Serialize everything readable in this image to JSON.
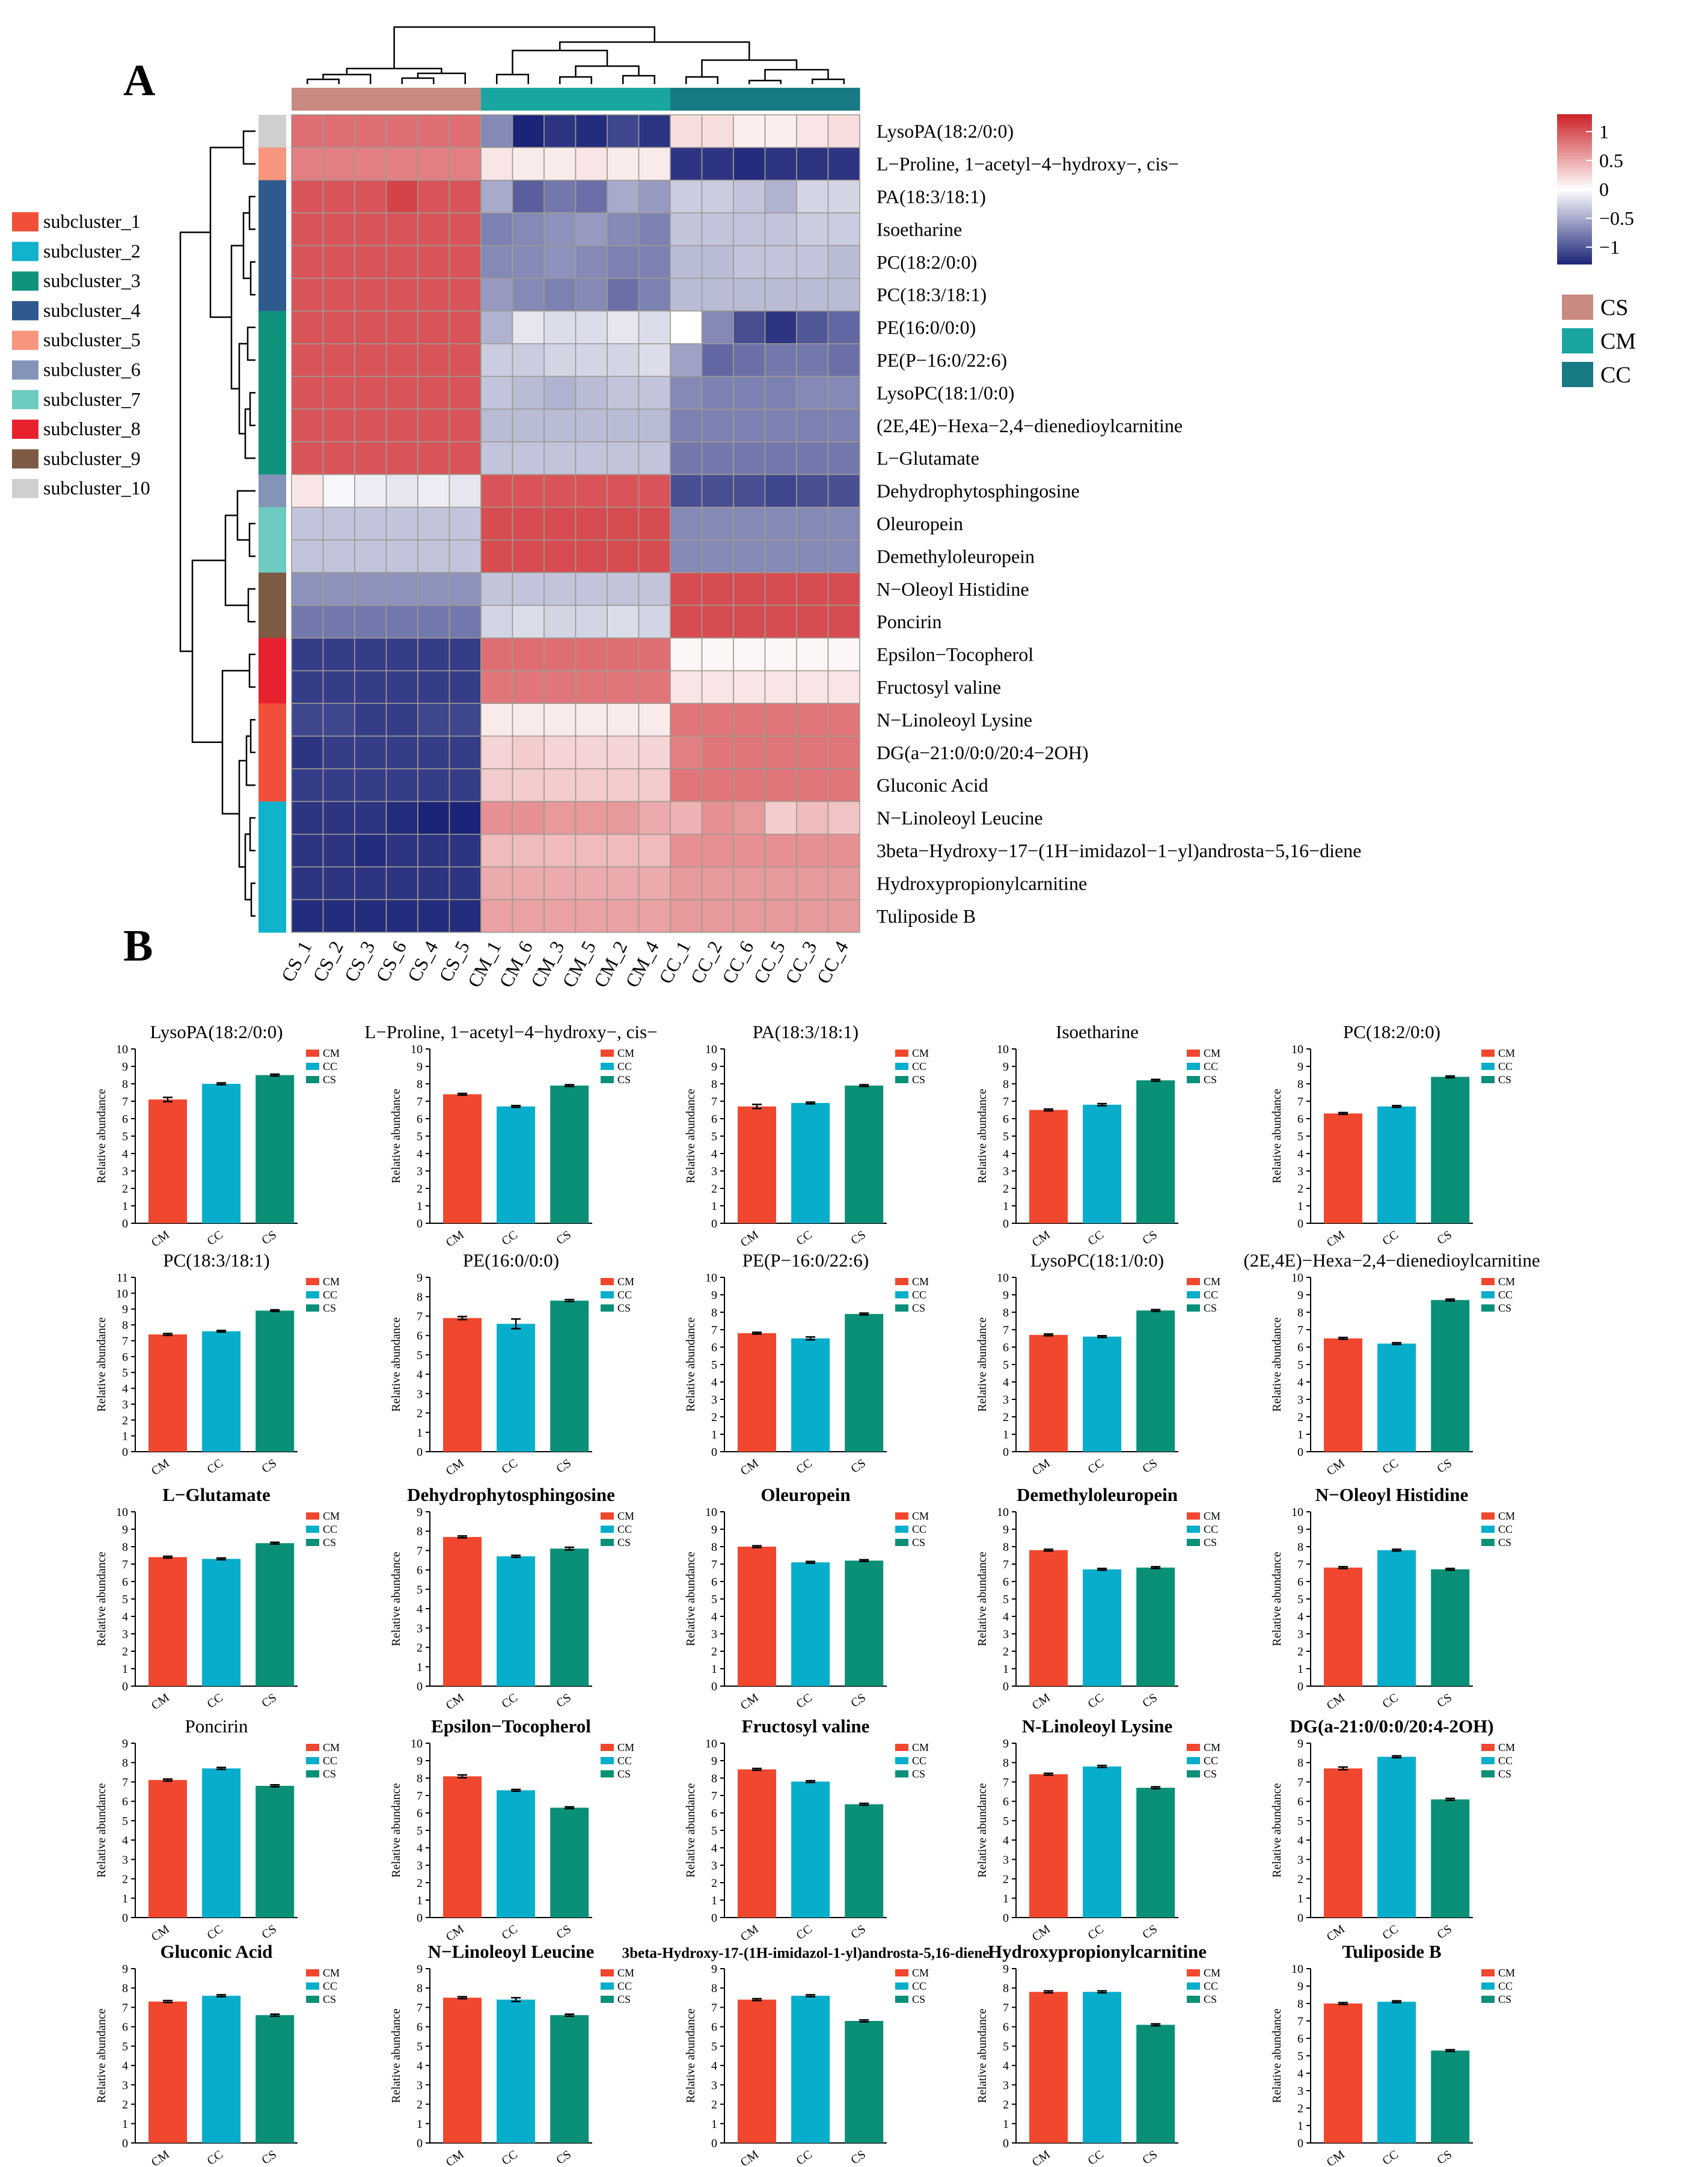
{
  "panel_labels": {
    "a": "A",
    "b": "B"
  },
  "colors": {
    "heat_low": "#1b2478",
    "heat_mid": "#ffffff",
    "heat_high": "#cc2127",
    "group": {
      "CS": "#c98a82",
      "CM": "#1aa6a0",
      "CC": "#187a84"
    },
    "bar": {
      "CM": "#f1472f",
      "CC": "#07aecb",
      "CS": "#0b9078"
    },
    "subcluster": [
      "#f05039",
      "#10b2cc",
      "#0f947b",
      "#2f5a8e",
      "#f7957f",
      "#8493b8",
      "#6dcbbf",
      "#e8212e",
      "#7d5a43",
      "#cfcfcf"
    ]
  },
  "chart_data": [
    {
      "type": "heatmap",
      "title": "",
      "columns": [
        "CS_1",
        "CS_2",
        "CS_3",
        "CS_6",
        "CS_4",
        "CS_5",
        "CM_1",
        "CM_6",
        "CM_3",
        "CM_5",
        "CM_2",
        "CM_4",
        "CC_1",
        "CC_2",
        "CC_6",
        "CC_5",
        "CC_3",
        "CC_4"
      ],
      "column_groups": [
        "CS",
        "CS",
        "CS",
        "CS",
        "CS",
        "CS",
        "CM",
        "CM",
        "CM",
        "CM",
        "CM",
        "CM",
        "CC",
        "CC",
        "CC",
        "CC",
        "CC",
        "CC"
      ],
      "rows": [
        "LysoPA(18:2/0:0)",
        "L−Proline, 1−acetyl−4−hydroxy−, cis−",
        "PA(18:3/18:1)",
        "Isoetharine",
        "PC(18:2/0:0)",
        "PC(18:3/18:1)",
        "PE(16:0/0:0)",
        "PE(P−16:0/22:6)",
        "LysoPC(18:1/0:0)",
        "(2E,4E)−Hexa−2,4−dienedioylcarnitine",
        "L−Glutamate",
        "Dehydrophytosphingosine",
        "Oleuropein",
        "Demethyloleuropein",
        "N−Oleoyl Histidine",
        "Poncirin",
        "Epsilon−Tocopherol",
        "Fructosyl valine",
        "N−Linoleoyl Lysine",
        "DG(a−21:0/0:0/20:4−2OH)",
        "Gluconic Acid",
        "N−Linoleoyl Leucine",
        "3beta−Hydroxy−17−(1H−imidazol−1−yl)androsta−5,16−diene",
        "Hydroxypropionylcarnitine",
        "Tuliposide B"
      ],
      "row_subclusters": [
        10,
        5,
        4,
        4,
        4,
        4,
        3,
        3,
        3,
        3,
        3,
        6,
        7,
        7,
        9,
        9,
        8,
        8,
        1,
        1,
        1,
        2,
        2,
        2,
        2
      ],
      "values": [
        [
          0.85,
          0.85,
          0.85,
          0.85,
          0.85,
          0.85,
          -0.7,
          -1.3,
          -1.2,
          -1.25,
          -1.1,
          -1.2,
          0.2,
          0.2,
          0.1,
          0.1,
          0.15,
          0.2
        ],
        [
          0.75,
          0.75,
          0.75,
          0.75,
          0.75,
          0.75,
          0.15,
          0.12,
          0.12,
          0.15,
          0.12,
          0.12,
          -1.2,
          -1.2,
          -1.25,
          -1.2,
          -1.2,
          -1.2
        ],
        [
          1.0,
          1.0,
          1.0,
          1.1,
          1.0,
          1.0,
          -0.5,
          -0.95,
          -0.8,
          -0.85,
          -0.5,
          -0.6,
          -0.3,
          -0.3,
          -0.35,
          -0.45,
          -0.25,
          -0.25
        ],
        [
          1.0,
          1.0,
          1.0,
          1.0,
          1.0,
          1.0,
          -0.75,
          -0.7,
          -0.65,
          -0.6,
          -0.7,
          -0.75,
          -0.35,
          -0.35,
          -0.35,
          -0.35,
          -0.3,
          -0.3
        ],
        [
          1.0,
          1.0,
          1.0,
          1.0,
          1.0,
          1.0,
          -0.7,
          -0.7,
          -0.65,
          -0.7,
          -0.75,
          -0.75,
          -0.4,
          -0.4,
          -0.35,
          -0.35,
          -0.35,
          -0.4
        ],
        [
          1.0,
          1.0,
          1.0,
          1.0,
          1.0,
          1.0,
          -0.6,
          -0.7,
          -0.75,
          -0.7,
          -0.85,
          -0.75,
          -0.4,
          -0.4,
          -0.4,
          -0.4,
          -0.4,
          -0.4
        ],
        [
          1.0,
          1.0,
          1.0,
          1.0,
          1.0,
          1.0,
          -0.45,
          -0.15,
          -0.2,
          -0.2,
          -0.15,
          -0.2,
          0.0,
          -0.7,
          -1.05,
          -1.2,
          -1.0,
          -0.9
        ],
        [
          1.0,
          1.0,
          1.0,
          1.0,
          1.0,
          1.0,
          -0.3,
          -0.3,
          -0.25,
          -0.25,
          -0.25,
          -0.2,
          -0.55,
          -0.9,
          -0.85,
          -0.8,
          -0.8,
          -0.85
        ],
        [
          1.0,
          1.0,
          1.0,
          1.0,
          1.0,
          1.0,
          -0.35,
          -0.4,
          -0.45,
          -0.4,
          -0.35,
          -0.35,
          -0.7,
          -0.75,
          -0.75,
          -0.75,
          -0.7,
          -0.7
        ],
        [
          1.0,
          1.0,
          1.0,
          1.0,
          1.0,
          1.0,
          -0.4,
          -0.4,
          -0.4,
          -0.4,
          -0.4,
          -0.4,
          -0.75,
          -0.75,
          -0.75,
          -0.75,
          -0.75,
          -0.75
        ],
        [
          1.0,
          1.0,
          1.0,
          1.0,
          1.0,
          1.0,
          -0.35,
          -0.35,
          -0.35,
          -0.35,
          -0.35,
          -0.35,
          -0.8,
          -0.8,
          -0.8,
          -0.8,
          -0.8,
          -0.8
        ],
        [
          0.15,
          -0.05,
          -0.1,
          -0.15,
          -0.1,
          -0.15,
          1.0,
          1.0,
          1.0,
          1.0,
          1.0,
          1.0,
          -1.05,
          -1.05,
          -1.05,
          -1.1,
          -1.05,
          -1.05
        ],
        [
          -0.35,
          -0.35,
          -0.35,
          -0.35,
          -0.35,
          -0.35,
          1.05,
          1.05,
          1.05,
          1.05,
          1.05,
          1.05,
          -0.7,
          -0.7,
          -0.7,
          -0.7,
          -0.7,
          -0.7
        ],
        [
          -0.35,
          -0.35,
          -0.35,
          -0.35,
          -0.35,
          -0.35,
          1.05,
          1.05,
          1.05,
          1.05,
          1.05,
          1.05,
          -0.7,
          -0.7,
          -0.7,
          -0.7,
          -0.7,
          -0.7
        ],
        [
          -0.65,
          -0.65,
          -0.65,
          -0.65,
          -0.65,
          -0.65,
          -0.35,
          -0.35,
          -0.35,
          -0.35,
          -0.35,
          -0.35,
          1.05,
          1.05,
          1.05,
          1.05,
          1.05,
          1.05
        ],
        [
          -0.8,
          -0.8,
          -0.8,
          -0.8,
          -0.8,
          -0.8,
          -0.25,
          -0.2,
          -0.25,
          -0.25,
          -0.2,
          -0.25,
          1.05,
          1.05,
          1.05,
          1.05,
          1.05,
          1.05
        ],
        [
          -1.15,
          -1.15,
          -1.15,
          -1.15,
          -1.15,
          -1.15,
          0.85,
          0.85,
          0.85,
          0.85,
          0.85,
          0.85,
          0.05,
          0.05,
          0.05,
          0.05,
          0.05,
          0.05
        ],
        [
          -1.15,
          -1.15,
          -1.15,
          -1.15,
          -1.15,
          -1.15,
          0.8,
          0.8,
          0.8,
          0.8,
          0.8,
          0.8,
          0.15,
          0.15,
          0.15,
          0.15,
          0.15,
          0.15
        ],
        [
          -1.1,
          -1.1,
          -1.15,
          -1.15,
          -1.1,
          -1.1,
          0.12,
          0.12,
          0.12,
          0.12,
          0.12,
          0.12,
          0.8,
          0.8,
          0.8,
          0.8,
          0.8,
          0.8
        ],
        [
          -1.2,
          -1.15,
          -1.15,
          -1.15,
          -1.15,
          -1.15,
          0.25,
          0.3,
          0.25,
          0.25,
          0.25,
          0.25,
          0.75,
          0.8,
          0.8,
          0.8,
          0.8,
          0.8
        ],
        [
          -1.15,
          -1.15,
          -1.15,
          -1.15,
          -1.15,
          -1.15,
          0.3,
          0.3,
          0.3,
          0.3,
          0.3,
          0.3,
          0.8,
          0.8,
          0.8,
          0.8,
          0.8,
          0.8
        ],
        [
          -1.2,
          -1.2,
          -1.2,
          -1.25,
          -1.3,
          -1.35,
          0.65,
          0.65,
          0.6,
          0.6,
          0.6,
          0.5,
          0.45,
          0.65,
          0.6,
          0.3,
          0.4,
          0.35
        ],
        [
          -1.2,
          -1.2,
          -1.25,
          -1.2,
          -1.2,
          -1.2,
          0.4,
          0.4,
          0.4,
          0.4,
          0.4,
          0.4,
          0.65,
          0.65,
          0.65,
          0.65,
          0.65,
          0.65
        ],
        [
          -1.2,
          -1.2,
          -1.2,
          -1.2,
          -1.2,
          -1.2,
          0.5,
          0.5,
          0.5,
          0.5,
          0.5,
          0.5,
          0.6,
          0.6,
          0.6,
          0.6,
          0.6,
          0.6
        ],
        [
          -1.25,
          -1.25,
          -1.25,
          -1.25,
          -1.25,
          -1.25,
          0.55,
          0.55,
          0.55,
          0.55,
          0.55,
          0.55,
          0.6,
          0.6,
          0.6,
          0.6,
          0.6,
          0.6
        ]
      ],
      "colorbar": {
        "range": [
          -1.3,
          1.3
        ],
        "tick_values": [
          1,
          0.5,
          0,
          -0.5,
          -1
        ],
        "tick_labels": [
          "1",
          "0.5",
          "0",
          "−0.5",
          "−1"
        ]
      },
      "group_legend": [
        "CS",
        "CM",
        "CC"
      ],
      "subcluster_legend": [
        "subcluster_1",
        "subcluster_2",
        "subcluster_3",
        "subcluster_4",
        "subcluster_5",
        "subcluster_6",
        "subcluster_7",
        "subcluster_8",
        "subcluster_9",
        "subcluster_10"
      ]
    },
    {
      "type": "bar",
      "categories": [
        "CM",
        "CC",
        "CS"
      ],
      "ylabel": "Relative abundance",
      "legend": [
        "CM",
        "CC",
        "CS"
      ],
      "panels": [
        {
          "title": "LysoPA(18:2/0:0)",
          "ymax": 10,
          "values": [
            7.1,
            8.0,
            8.5
          ],
          "errors": [
            0.12,
            0.05,
            0.05
          ]
        },
        {
          "title": "L−Proline, 1−acetyl−4−hydroxy−, cis−",
          "ymax": 10,
          "values": [
            7.4,
            6.7,
            7.9
          ],
          "errors": [
            0.05,
            0.05,
            0.05
          ]
        },
        {
          "title": "PA(18:3/18:1)",
          "ymax": 10,
          "values": [
            6.7,
            6.9,
            7.9
          ],
          "errors": [
            0.12,
            0.05,
            0.05
          ]
        },
        {
          "title": "Isoetharine",
          "ymax": 10,
          "values": [
            6.5,
            6.8,
            8.2
          ],
          "errors": [
            0.05,
            0.06,
            0.05
          ]
        },
        {
          "title": "PC(18:2/0:0)",
          "ymax": 10,
          "values": [
            6.3,
            6.7,
            8.4
          ],
          "errors": [
            0.05,
            0.05,
            0.05
          ]
        },
        {
          "title": "PC(18:3/18:1)",
          "ymax": 11,
          "values": [
            7.4,
            7.6,
            8.9
          ],
          "errors": [
            0.06,
            0.05,
            0.05
          ]
        },
        {
          "title": "PE(16:0/0:0)",
          "ymax": 9,
          "values": [
            6.9,
            6.6,
            7.8
          ],
          "errors": [
            0.08,
            0.25,
            0.05
          ]
        },
        {
          "title": "PE(P−16:0/22:6)",
          "ymax": 10,
          "values": [
            6.8,
            6.5,
            7.9
          ],
          "errors": [
            0.05,
            0.08,
            0.05
          ]
        },
        {
          "title": "LysoPC(18:1/0:0)",
          "ymax": 10,
          "values": [
            6.7,
            6.6,
            8.1
          ],
          "errors": [
            0.05,
            0.05,
            0.05
          ]
        },
        {
          "title": "(2E,4E)−Hexa−2,4−dienedioylcarnitine",
          "ymax": 10,
          "values": [
            6.5,
            6.2,
            8.7
          ],
          "errors": [
            0.05,
            0.05,
            0.05
          ]
        },
        {
          "title": "L−Glutamate",
          "ymax": 10,
          "values": [
            7.4,
            7.3,
            8.2
          ],
          "errors": [
            0.05,
            0.05,
            0.05
          ]
        },
        {
          "title": "Dehydrophytosphingosine",
          "ymax": 9,
          "values": [
            7.7,
            6.7,
            7.1
          ],
          "errors": [
            0.05,
            0.05,
            0.07
          ]
        },
        {
          "title": "Oleuropein",
          "ymax": 10,
          "values": [
            8.0,
            7.1,
            7.2
          ],
          "errors": [
            0.05,
            0.05,
            0.05
          ]
        },
        {
          "title": "Demethyloleuropein",
          "ymax": 10,
          "values": [
            7.8,
            6.7,
            6.8
          ],
          "errors": [
            0.05,
            0.05,
            0.05
          ]
        },
        {
          "title": "N−Oleoyl Histidine",
          "ymax": 10,
          "values": [
            6.8,
            7.8,
            6.7
          ],
          "errors": [
            0.05,
            0.05,
            0.05
          ]
        },
        {
          "title": "Poncirin",
          "ymax": 9,
          "values": [
            7.1,
            7.7,
            6.8
          ],
          "errors": [
            0.05,
            0.05,
            0.05
          ]
        },
        {
          "title": "Epsilon−Tocopherol",
          "ymax": 10,
          "values": [
            8.1,
            7.3,
            6.3
          ],
          "errors": [
            0.08,
            0.05,
            0.05
          ]
        },
        {
          "title": "Fructosyl valine",
          "ymax": 10,
          "values": [
            8.5,
            7.8,
            6.5
          ],
          "errors": [
            0.05,
            0.05,
            0.05
          ]
        },
        {
          "title": "N-Linoleoyl Lysine",
          "ymax": 9,
          "values": [
            7.4,
            7.8,
            6.7
          ],
          "errors": [
            0.05,
            0.05,
            0.05
          ]
        },
        {
          "title": "DG(a-21:0/0:0/20:4-2OH)",
          "ymax": 9,
          "values": [
            7.7,
            8.3,
            6.1
          ],
          "errors": [
            0.07,
            0.05,
            0.05
          ]
        },
        {
          "title": "Gluconic Acid",
          "ymax": 9,
          "values": [
            7.3,
            7.6,
            6.6
          ],
          "errors": [
            0.05,
            0.05,
            0.05
          ]
        },
        {
          "title": "N−Linoleoyl Leucine",
          "ymax": 9,
          "values": [
            7.5,
            7.4,
            6.6
          ],
          "errors": [
            0.05,
            0.1,
            0.05
          ]
        },
        {
          "title": "3beta-Hydroxy-17-(1H-imidazol-1-yl)androsta-5,16-diene",
          "ymax": 9,
          "values": [
            7.4,
            7.6,
            6.3
          ],
          "errors": [
            0.05,
            0.05,
            0.05
          ]
        },
        {
          "title": "Hydroxypropionylcarnitine",
          "ymax": 9,
          "values": [
            7.8,
            7.8,
            6.1
          ],
          "errors": [
            0.05,
            0.05,
            0.05
          ]
        },
        {
          "title": "Tuliposide B",
          "ymax": 10,
          "values": [
            8.0,
            8.1,
            5.3
          ],
          "errors": [
            0.05,
            0.05,
            0.05
          ]
        }
      ]
    }
  ]
}
